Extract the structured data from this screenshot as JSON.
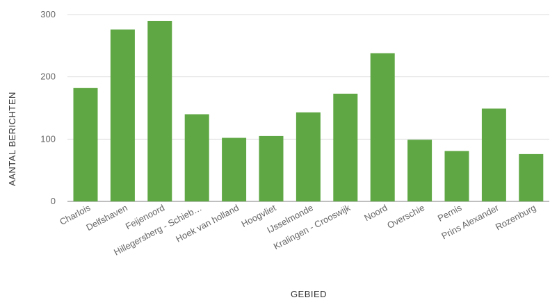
{
  "chart_data": {
    "type": "bar",
    "xlabel": "GEBIED",
    "ylabel": "AANTAL BERICHTEN",
    "ylim": [
      0,
      300
    ],
    "yticks": [
      0,
      100,
      200,
      300
    ],
    "grid": true,
    "legend": "none",
    "bar_color": "#5fa744",
    "categories": [
      "Charlois",
      "Delfshaven",
      "Feijenoord",
      "Hillegersberg - Schieb…",
      "Hoek van holland",
      "Hoogvliet",
      "IJsselmonde",
      "Kralingen - Crooswijk",
      "Noord",
      "Overschie",
      "Pernis",
      "Prins Alexander",
      "Rozenburg"
    ],
    "values": [
      182,
      276,
      290,
      140,
      102,
      105,
      143,
      173,
      238,
      99,
      81,
      149,
      76
    ]
  }
}
